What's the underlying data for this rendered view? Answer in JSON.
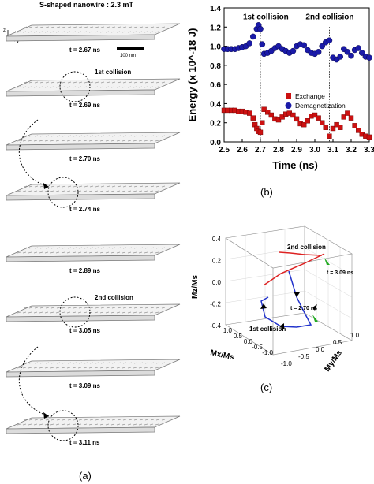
{
  "panel_a": {
    "title": "S-shaped nanowire : 2.3 mT",
    "scale_bar": "100 nm",
    "axes": {
      "z": "z",
      "y": "y",
      "x": "x"
    },
    "snapshots": [
      {
        "time": "t = 2.67 ns"
      },
      {
        "time": "t = 2.69 ns",
        "collision": "1st collision"
      },
      {
        "time": "t = 2.70 ns"
      },
      {
        "time": "t = 2.74 ns"
      },
      {
        "time": "t = 2.89 ns"
      },
      {
        "time": "t = 3.05 ns",
        "collision": "2nd collision"
      },
      {
        "time": "t = 3.09 ns"
      },
      {
        "time": "t = 3.11 ns"
      }
    ],
    "tag": "(a)"
  },
  "panel_b": {
    "tag": "(b)"
  },
  "panel_c": {
    "tag": "(c)",
    "z_label": "Mz/Ms",
    "x_label": "Mx/Ms",
    "y_label": "My/Ms",
    "z_ticks": [
      "0.4",
      "0.2",
      "0.0",
      "-0.2",
      "-0.4"
    ],
    "x_ticks": [
      "1.0",
      "0.5",
      "0.0",
      "-0.5",
      "-1.0"
    ],
    "y_ticks": [
      "-1.0",
      "-0.5",
      "0.0",
      "0.5",
      "1.0"
    ],
    "annotations": {
      "first": "1st collision",
      "second": "2nd collision",
      "t1": "t = 2.70 ns",
      "t2": "t = 3.09 ns"
    }
  },
  "chart_data": {
    "type": "scatter",
    "xlabel": "Time (ns)",
    "ylabel": "Energy (x 10^-18 J)",
    "xlim": [
      2.5,
      3.3
    ],
    "ylim": [
      0.0,
      1.4
    ],
    "x_ticks": [
      "2.5",
      "2.6",
      "2.7",
      "2.8",
      "2.9",
      "3.0",
      "3.1",
      "3.2",
      "3.3"
    ],
    "y_ticks": [
      "0.0",
      "0.2",
      "0.4",
      "0.6",
      "0.8",
      "1.0",
      "1.2",
      "1.4"
    ],
    "legend_position": "center-right",
    "annotations": [
      {
        "text": "1st collision",
        "x": 2.7
      },
      {
        "text": "2nd collision",
        "x": 3.08
      }
    ],
    "series": [
      {
        "name": "Exchange",
        "color": "#cc1111",
        "marker": "square",
        "x": [
          2.5,
          2.52,
          2.54,
          2.56,
          2.58,
          2.6,
          2.62,
          2.64,
          2.66,
          2.67,
          2.68,
          2.69,
          2.7,
          2.71,
          2.72,
          2.74,
          2.76,
          2.78,
          2.8,
          2.82,
          2.84,
          2.86,
          2.88,
          2.9,
          2.92,
          2.94,
          2.96,
          2.98,
          3.0,
          3.02,
          3.04,
          3.06,
          3.08,
          3.1,
          3.12,
          3.14,
          3.16,
          3.18,
          3.2,
          3.22,
          3.24,
          3.26,
          3.28,
          3.3
        ],
        "y": [
          0.33,
          0.33,
          0.33,
          0.33,
          0.32,
          0.32,
          0.31,
          0.3,
          0.25,
          0.18,
          0.14,
          0.11,
          0.1,
          0.2,
          0.34,
          0.31,
          0.28,
          0.24,
          0.23,
          0.26,
          0.29,
          0.3,
          0.28,
          0.24,
          0.19,
          0.18,
          0.22,
          0.27,
          0.28,
          0.25,
          0.2,
          0.15,
          0.06,
          0.14,
          0.18,
          0.15,
          0.26,
          0.3,
          0.25,
          0.17,
          0.12,
          0.08,
          0.06,
          0.05
        ]
      },
      {
        "name": "Demagnetization",
        "color": "#1a1aa8",
        "marker": "circle",
        "x": [
          2.5,
          2.52,
          2.54,
          2.56,
          2.58,
          2.6,
          2.62,
          2.64,
          2.66,
          2.68,
          2.69,
          2.7,
          2.71,
          2.72,
          2.74,
          2.76,
          2.78,
          2.8,
          2.82,
          2.84,
          2.86,
          2.88,
          2.9,
          2.92,
          2.94,
          2.96,
          2.98,
          3.0,
          3.02,
          3.04,
          3.06,
          3.08,
          3.1,
          3.12,
          3.14,
          3.16,
          3.18,
          3.2,
          3.22,
          3.24,
          3.26,
          3.28,
          3.3
        ],
        "y": [
          0.97,
          0.97,
          0.97,
          0.97,
          0.98,
          0.99,
          1.0,
          1.03,
          1.1,
          1.18,
          1.22,
          1.18,
          1.02,
          0.92,
          0.93,
          0.95,
          0.98,
          1.0,
          0.97,
          0.95,
          0.93,
          0.95,
          1.0,
          1.02,
          1.01,
          0.96,
          0.93,
          0.92,
          0.94,
          1.0,
          1.04,
          1.06,
          0.88,
          0.86,
          0.89,
          0.97,
          0.94,
          0.9,
          0.96,
          0.98,
          0.93,
          0.89,
          0.88
        ]
      }
    ]
  }
}
